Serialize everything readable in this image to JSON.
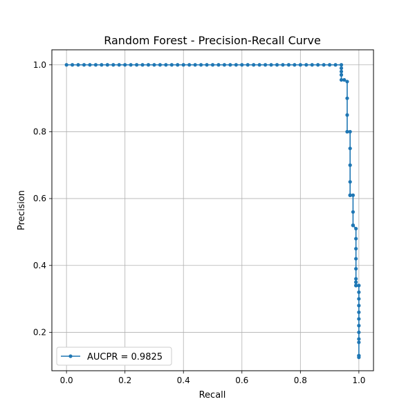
{
  "chart_data": {
    "type": "line",
    "title": "Random Forest - Precision-Recall Curve",
    "xlabel": "Recall",
    "ylabel": "Precision",
    "xlim": [
      -0.05,
      1.05
    ],
    "ylim": [
      0.085,
      1.045
    ],
    "xticks": [
      0.0,
      0.2,
      0.4,
      0.6,
      0.8,
      1.0
    ],
    "xtick_labels": [
      "0.0",
      "0.2",
      "0.4",
      "0.6",
      "0.8",
      "1.0"
    ],
    "yticks": [
      0.2,
      0.4,
      0.6,
      0.8,
      1.0
    ],
    "ytick_labels": [
      "0.2",
      "0.4",
      "0.6",
      "0.8",
      "1.0"
    ],
    "grid": true,
    "legend_position": "lower-left",
    "series": [
      {
        "name": "AUCPR = 0.9825",
        "color": "#1f77b4",
        "marker": "circle",
        "x": [
          0.0,
          0.02,
          0.04,
          0.06,
          0.08,
          0.1,
          0.12,
          0.14,
          0.16,
          0.18,
          0.2,
          0.22,
          0.24,
          0.26,
          0.28,
          0.3,
          0.32,
          0.34,
          0.36,
          0.38,
          0.4,
          0.42,
          0.44,
          0.46,
          0.48,
          0.5,
          0.52,
          0.54,
          0.56,
          0.58,
          0.6,
          0.62,
          0.64,
          0.66,
          0.68,
          0.7,
          0.72,
          0.74,
          0.76,
          0.78,
          0.8,
          0.82,
          0.84,
          0.86,
          0.88,
          0.9,
          0.92,
          0.94,
          0.94,
          0.94,
          0.94,
          0.94,
          0.95,
          0.96,
          0.96,
          0.96,
          0.96,
          0.96,
          0.97,
          0.97,
          0.97,
          0.97,
          0.97,
          0.97,
          0.97,
          0.98,
          0.98,
          0.98,
          0.98,
          0.98,
          0.99,
          0.99,
          0.99,
          0.99,
          0.99,
          0.99,
          0.99,
          0.99,
          0.99,
          0.99,
          0.99,
          1.0,
          1.0,
          1.0,
          1.0,
          1.0,
          1.0,
          1.0,
          1.0,
          1.0,
          1.0,
          1.0,
          1.0,
          1.0
        ],
        "y": [
          1.0,
          1.0,
          1.0,
          1.0,
          1.0,
          1.0,
          1.0,
          1.0,
          1.0,
          1.0,
          1.0,
          1.0,
          1.0,
          1.0,
          1.0,
          1.0,
          1.0,
          1.0,
          1.0,
          1.0,
          1.0,
          1.0,
          1.0,
          1.0,
          1.0,
          1.0,
          1.0,
          1.0,
          1.0,
          1.0,
          1.0,
          1.0,
          1.0,
          1.0,
          1.0,
          1.0,
          1.0,
          1.0,
          1.0,
          1.0,
          1.0,
          1.0,
          1.0,
          1.0,
          1.0,
          1.0,
          1.0,
          1.0,
          0.99,
          0.98,
          0.97,
          0.955,
          0.955,
          0.95,
          0.9,
          0.85,
          0.8,
          0.8,
          0.8,
          0.75,
          0.7,
          0.65,
          0.61,
          0.61,
          0.61,
          0.61,
          0.56,
          0.52,
          0.52,
          0.52,
          0.51,
          0.48,
          0.45,
          0.42,
          0.39,
          0.36,
          0.35,
          0.35,
          0.34,
          0.34,
          0.34,
          0.34,
          0.32,
          0.3,
          0.28,
          0.26,
          0.24,
          0.22,
          0.2,
          0.18,
          0.17,
          0.13,
          0.13,
          0.125
        ]
      }
    ]
  }
}
